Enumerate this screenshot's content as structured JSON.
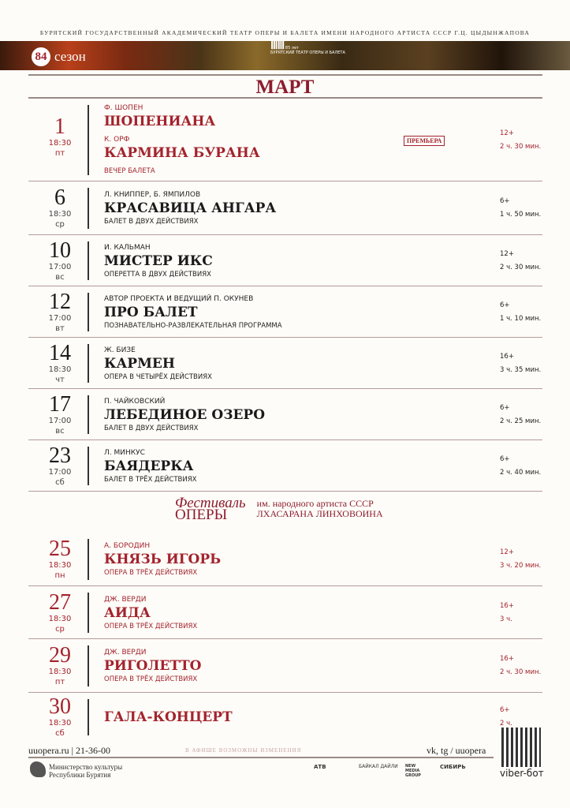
{
  "header": {
    "institution": "БУРЯТСКИЙ ГОСУДАРСТВЕННЫЙ АКАДЕМИЧЕСКИЙ ТЕАТР ОПЕРЫ И БАЛЕТА ИМЕНИ НАРОДНОГО АРТИСТА СССР Г.Ц. ЦЫДЫНЖАПОВА",
    "season_number": "84",
    "season_label": "сезон",
    "logo_years": "85",
    "logo_years_label": "лет",
    "logo_text": "БУРЯТСКИЙ ТЕАТР ОПЕРЫ И БАЛЕТА"
  },
  "month": "МАРТ",
  "colors": {
    "accent": "#a3232d",
    "title": "#8c1d2e"
  },
  "events": [
    {
      "day": "1",
      "time": "18:30",
      "weekday": "пт",
      "red": true,
      "items": [
        {
          "author": "Ф. ШОПЕН",
          "title": "ШОПЕНИАНА"
        },
        {
          "author": "К. ОРФ",
          "title": "КАРМИНА БУРАНА"
        }
      ],
      "desc": "ВЕЧЕР БАЛЕТА",
      "badge": "ПРЕМЬЕРА",
      "age": "12+",
      "duration": "2 ч. 30 мин."
    },
    {
      "day": "6",
      "time": "18:30",
      "weekday": "ср",
      "items": [
        {
          "author": "Л. КНИППЕР, Б. ЯМПИЛОВ",
          "title": "КРАСАВИЦА АНГАРА"
        }
      ],
      "desc": "БАЛЕТ В ДВУХ ДЕЙСТВИЯХ",
      "age": "6+",
      "duration": "1 ч. 50 мин."
    },
    {
      "day": "10",
      "time": "17:00",
      "weekday": "вс",
      "items": [
        {
          "author": "И. КАЛЬМАН",
          "title": "МИСТЕР ИКС"
        }
      ],
      "desc": "ОПЕРЕТТА В ДВУХ ДЕЙСТВИЯХ",
      "age": "12+",
      "duration": "2 ч. 30 мин."
    },
    {
      "day": "12",
      "time": "17:00",
      "weekday": "вт",
      "items": [
        {
          "author": "АВТОР ПРОЕКТА И ВЕДУЩИЙ П. ОКУНЕВ",
          "title": "ПРО БАЛЕТ"
        }
      ],
      "desc": "ПОЗНАВАТЕЛЬНО-РАЗВЛЕКАТЕЛЬНАЯ ПРОГРАММА",
      "age": "6+",
      "duration": "1 ч. 10 мин."
    },
    {
      "day": "14",
      "time": "18:30",
      "weekday": "чт",
      "items": [
        {
          "author": "Ж. БИЗЕ",
          "title": "КАРМЕН"
        }
      ],
      "desc": "ОПЕРА В ЧЕТЫРЁХ ДЕЙСТВИЯХ",
      "age": "16+",
      "duration": "3 ч. 35 мин."
    },
    {
      "day": "17",
      "time": "17:00",
      "weekday": "вс",
      "items": [
        {
          "author": "П. ЧАЙКОВСКИЙ",
          "title": "ЛЕБЕДИНОЕ ОЗЕРО"
        }
      ],
      "desc": "БАЛЕТ В ДВУХ ДЕЙСТВИЯХ",
      "age": "6+",
      "duration": "2 ч. 25 мин."
    },
    {
      "day": "23",
      "time": "17:00",
      "weekday": "сб",
      "items": [
        {
          "author": "Л. МИНКУС",
          "title": "БАЯДЕРКА"
        }
      ],
      "desc": "БАЛЕТ В ТРЁХ ДЕЙСТВИЯХ",
      "age": "6+",
      "duration": "2 ч. 40 мин."
    },
    {
      "day": "25",
      "time": "18:30",
      "weekday": "пн",
      "red": true,
      "items": [
        {
          "author": "А. БОРОДИН",
          "title": "КНЯЗЬ ИГОРЬ"
        }
      ],
      "desc": "ОПЕРА В ТРЁХ ДЕЙСТВИЯХ",
      "age": "12+",
      "duration": "3 ч. 20 мин."
    },
    {
      "day": "27",
      "time": "18:30",
      "weekday": "ср",
      "red": true,
      "items": [
        {
          "author": "ДЖ. ВЕРДИ",
          "title": "АИДА"
        }
      ],
      "desc": "ОПЕРА В ТРЁХ ДЕЙСТВИЯХ",
      "age": "16+",
      "duration": "3 ч."
    },
    {
      "day": "29",
      "time": "18:30",
      "weekday": "пт",
      "red": true,
      "items": [
        {
          "author": "ДЖ. ВЕРДИ",
          "title": "РИГОЛЕТТО"
        }
      ],
      "desc": "ОПЕРА В ТРЁХ ДЕЙСТВИЯХ",
      "age": "16+",
      "duration": "2 ч. 30 мин."
    },
    {
      "day": "30",
      "time": "18:30",
      "weekday": "сб",
      "red": true,
      "items": [
        {
          "author": "",
          "title": "ГАЛА-КОНЦЕРТ"
        }
      ],
      "desc": "",
      "age": "6+",
      "duration": "2 ч."
    }
  ],
  "festival": {
    "line1": "Фестиваль",
    "line2": "ОПЕРЫ",
    "sub1": "им. народного артиста СССР",
    "sub2": "ЛХАСАРАНА ЛИНХОВОИНА"
  },
  "footer": {
    "site": "uuopera.ru | 21-36-00",
    "note": "В АФИШЕ ВОЗМОЖНЫ ИЗМЕНЕНИЯ",
    "social": "vk, tg / uuopera",
    "ministry1": "Министерство культуры",
    "ministry2": "Республики Бурятия",
    "sponsors": [
      "АТВ",
      "БАЙКАЛ ДАЙЛИ",
      "NEW MEDIA GROUP",
      "СИБИРЬ"
    ],
    "viber": "viber-бот"
  }
}
